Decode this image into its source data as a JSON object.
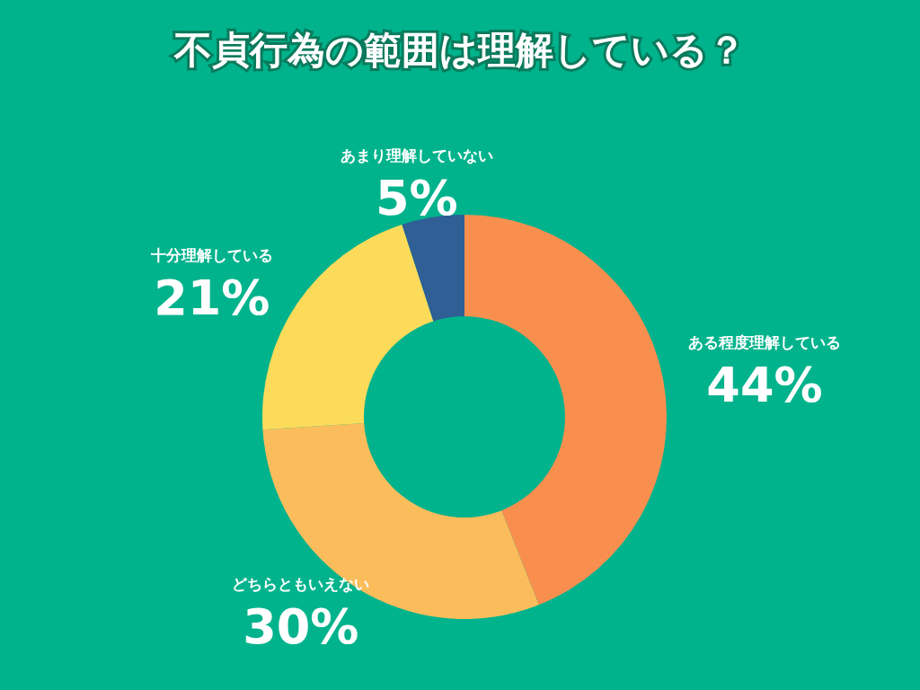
{
  "chart_data": {
    "type": "donut",
    "title": "不貞行為の範囲は理解している？",
    "categories": [
      "ある程度理解している",
      "どちらともいえない",
      "十分理解している",
      "あまり理解していない"
    ],
    "values": [
      44,
      30,
      21,
      5
    ],
    "colors": [
      "#f98f4f",
      "#fbbd5c",
      "#fcdb5b",
      "#2f5f95"
    ],
    "value_labels": [
      "44%",
      "30%",
      "21%",
      "5%"
    ]
  }
}
